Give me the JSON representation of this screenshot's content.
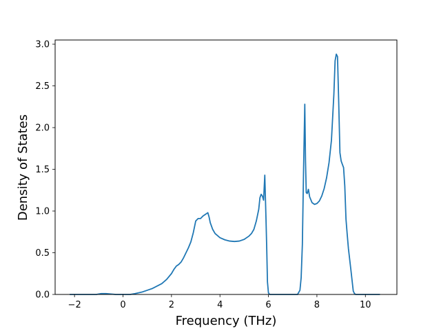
{
  "chart_data": {
    "type": "line",
    "title": "",
    "xlabel": "Frequency (THz)",
    "ylabel": "Density of States",
    "xlim": [
      -2.8,
      11.3
    ],
    "ylim": [
      0.0,
      3.05
    ],
    "x_ticks": [
      -2,
      0,
      2,
      4,
      6,
      8,
      10
    ],
    "x_tick_labels": [
      "−2",
      "0",
      "2",
      "4",
      "6",
      "8",
      "10"
    ],
    "y_ticks": [
      0.0,
      0.5,
      1.0,
      1.5,
      2.0,
      2.5,
      3.0
    ],
    "y_tick_labels": [
      "0.0",
      "0.5",
      "1.0",
      "1.5",
      "2.0",
      "2.5",
      "3.0"
    ],
    "grid": false,
    "line_color": "#1f77b4",
    "series": [
      {
        "x": [
          -2.2,
          -1.5,
          -1.1,
          -0.9,
          -0.7,
          -0.3,
          0.0,
          0.3,
          0.5,
          0.8,
          1.0,
          1.2,
          1.4,
          1.6,
          1.8,
          2.0,
          2.1,
          2.2,
          2.3,
          2.4,
          2.5,
          2.6,
          2.7,
          2.8,
          2.9,
          3.0,
          3.1,
          3.2,
          3.3,
          3.4,
          3.5,
          3.55,
          3.6,
          3.7,
          3.8,
          4.0,
          4.2,
          4.4,
          4.6,
          4.8,
          5.0,
          5.2,
          5.3,
          5.4,
          5.5,
          5.6,
          5.65,
          5.7,
          5.75,
          5.8,
          5.85,
          5.9,
          5.93,
          5.96,
          6.0,
          6.05,
          6.1,
          6.2,
          6.5,
          7.0,
          7.2,
          7.3,
          7.35,
          7.4,
          7.45,
          7.5,
          7.53,
          7.56,
          7.6,
          7.65,
          7.7,
          7.8,
          7.9,
          8.0,
          8.1,
          8.2,
          8.3,
          8.4,
          8.5,
          8.6,
          8.7,
          8.75,
          8.8,
          8.85,
          8.9,
          8.95,
          9.0,
          9.05,
          9.1,
          9.15,
          9.2,
          9.25,
          9.3,
          9.4,
          9.5,
          9.55,
          9.6,
          9.7,
          10.0,
          10.6
        ],
        "y": [
          0.0,
          0.0,
          0.0,
          0.01,
          0.01,
          0.0,
          0.0,
          0.0,
          0.01,
          0.03,
          0.05,
          0.07,
          0.1,
          0.13,
          0.18,
          0.25,
          0.3,
          0.34,
          0.36,
          0.39,
          0.44,
          0.5,
          0.56,
          0.63,
          0.74,
          0.88,
          0.91,
          0.91,
          0.94,
          0.96,
          0.98,
          0.93,
          0.86,
          0.78,
          0.73,
          0.68,
          0.655,
          0.64,
          0.635,
          0.64,
          0.66,
          0.7,
          0.73,
          0.78,
          0.88,
          1.02,
          1.16,
          1.2,
          1.18,
          1.13,
          1.43,
          0.9,
          0.55,
          0.15,
          0.02,
          0.0,
          0.0,
          0.0,
          0.0,
          0.0,
          0.0,
          0.05,
          0.2,
          0.6,
          1.5,
          2.28,
          1.6,
          1.22,
          1.21,
          1.26,
          1.17,
          1.1,
          1.08,
          1.09,
          1.12,
          1.18,
          1.27,
          1.4,
          1.58,
          1.85,
          2.4,
          2.8,
          2.88,
          2.85,
          2.3,
          1.7,
          1.6,
          1.56,
          1.52,
          1.3,
          0.9,
          0.72,
          0.55,
          0.3,
          0.04,
          0.01,
          0.0,
          0.0,
          0.0,
          0.0
        ]
      }
    ]
  }
}
